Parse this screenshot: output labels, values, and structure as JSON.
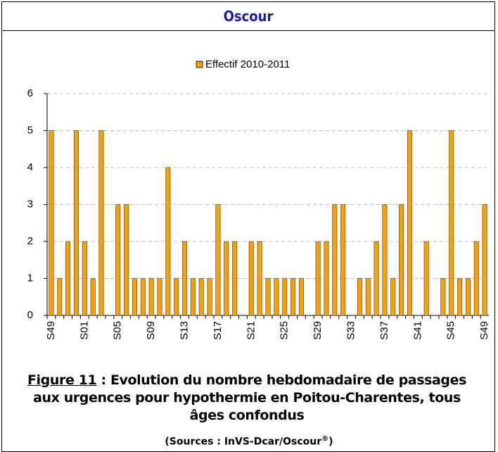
{
  "header": {
    "title": "Oscour"
  },
  "chart_data": {
    "type": "bar",
    "categories": [
      "S49",
      null,
      null,
      null,
      "S01",
      null,
      null,
      null,
      "S05",
      null,
      null,
      null,
      "S09",
      null,
      null,
      null,
      "S13",
      null,
      null,
      null,
      "S17",
      null,
      null,
      null,
      "S21",
      null,
      null,
      null,
      "S25",
      null,
      null,
      null,
      "S29",
      null,
      null,
      null,
      "S33",
      null,
      null,
      null,
      "S37",
      null,
      null,
      null,
      "S41",
      null,
      null,
      null,
      "S45",
      null,
      null,
      null,
      "S49"
    ],
    "series": [
      {
        "name": "Effectif 2010-2011",
        "color": "#f5a00f",
        "values": [
          5,
          1,
          2,
          5,
          2,
          1,
          5,
          0,
          3,
          3,
          1,
          1,
          1,
          1,
          4,
          1,
          2,
          1,
          1,
          1,
          3,
          2,
          2,
          0,
          2,
          2,
          1,
          1,
          1,
          1,
          1,
          0,
          2,
          2,
          3,
          3,
          0,
          1,
          1,
          2,
          3,
          1,
          3,
          5,
          0,
          2,
          0,
          1,
          5,
          1,
          1,
          2,
          3
        ]
      }
    ],
    "ylim": [
      0,
      6
    ],
    "yticks": [
      0,
      1,
      2,
      3,
      4,
      5,
      6
    ],
    "grid": true,
    "legend": "top"
  },
  "caption": {
    "figure_label": "Figure 11",
    "text": " : Evolution du nombre hebdomadaire de passages aux urgences pour hypothermie  en Poitou-Charentes, tous âges confondus",
    "source": "(Sources : InVS-Dcar/Oscour",
    "source_mark": "®",
    "source_end": ")"
  }
}
